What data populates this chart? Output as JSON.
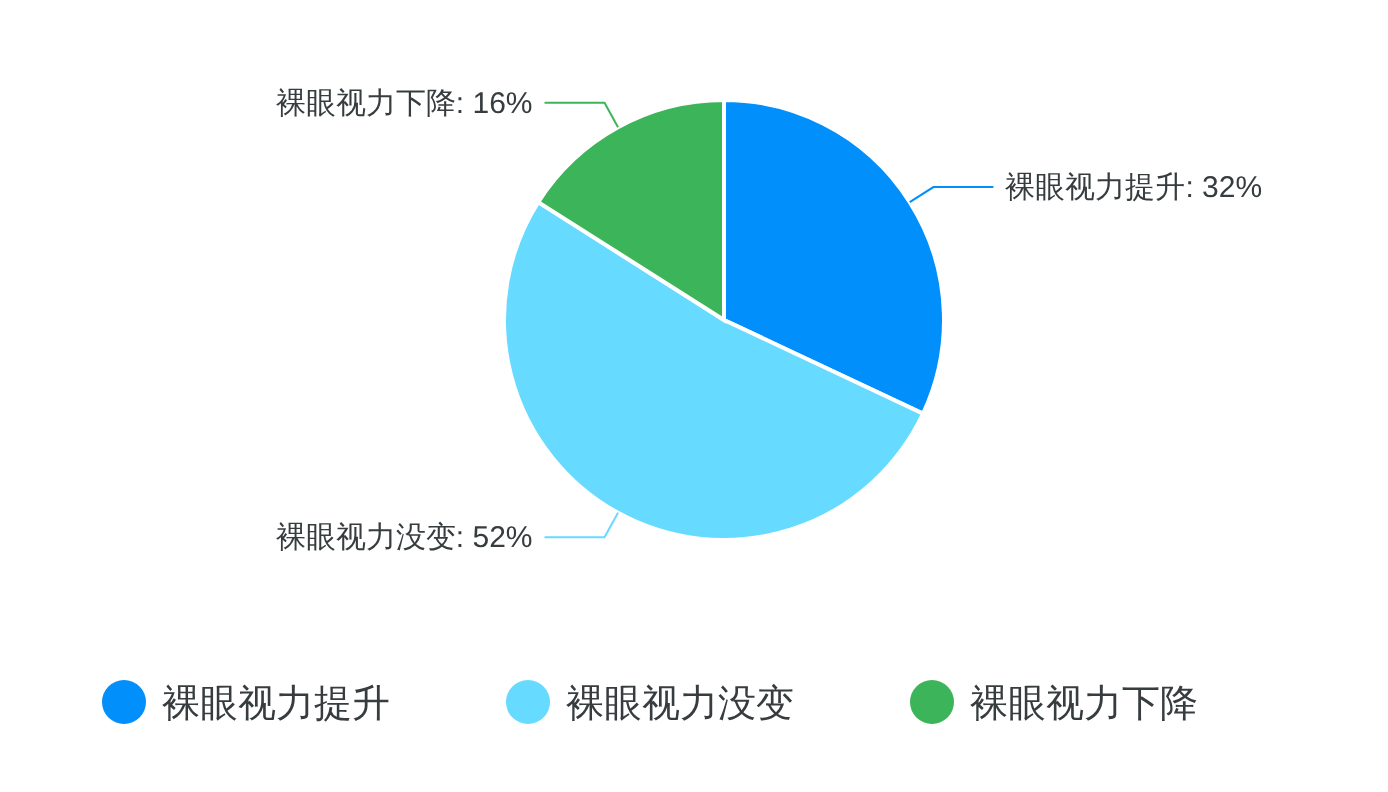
{
  "chart_data": {
    "type": "pie",
    "categories": [
      "裸眼视力提升",
      "裸眼视力没变",
      "裸眼视力下降"
    ],
    "values": [
      32,
      52,
      16
    ],
    "colors": [
      "#008ffb",
      "#66daff",
      "#3cb55a"
    ],
    "value_labels": [
      "裸眼视力提升: 32%",
      "裸眼视力没变: 52%",
      "裸眼视力下降: 16%"
    ],
    "legend": "bottom"
  }
}
